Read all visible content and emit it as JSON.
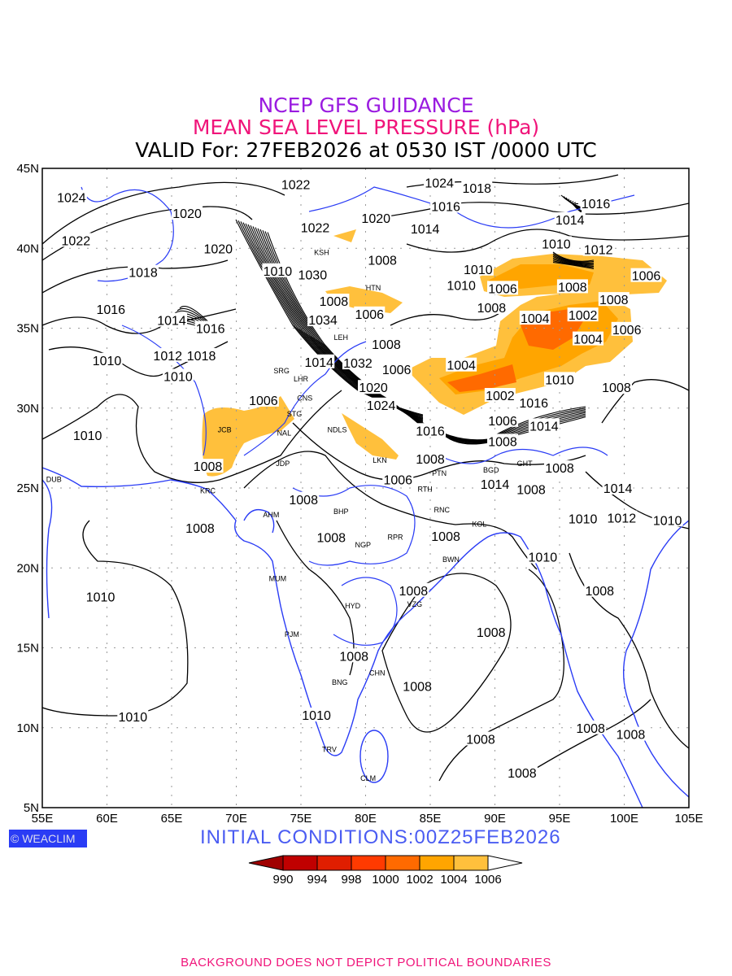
{
  "title": {
    "line1": "NCEP GFS GUIDANCE",
    "line2": "MEAN SEA LEVEL PRESSURE (hPa)",
    "line3": "VALID For: 27FEB2026 at 0530 IST /0000 UTC"
  },
  "initial_conditions": "INITIAL  CONDITIONS:00Z25FEB2026",
  "logo": "© WEACLIM",
  "footer": "BACKGROUND DOES NOT DEPICT POLITICAL BOUNDARIES",
  "axes": {
    "x_ticks": [
      "55E",
      "60E",
      "65E",
      "70E",
      "75E",
      "80E",
      "85E",
      "90E",
      "95E",
      "100E",
      "105E"
    ],
    "y_ticks": [
      "45N",
      "40N",
      "35N",
      "30N",
      "25N",
      "20N",
      "15N",
      "10N",
      "5N"
    ],
    "lon_range": [
      55,
      105
    ],
    "lat_range": [
      5,
      45
    ]
  },
  "colorbar": {
    "labels": [
      "990",
      "994",
      "998",
      "1000",
      "1002",
      "1004",
      "1006"
    ],
    "colors": [
      "#a00000",
      "#c00000",
      "#e01e00",
      "#ff3a00",
      "#ff6a00",
      "#ffa500",
      "#ffc03c",
      "#ffffff"
    ]
  },
  "colors": {
    "coast": "#2a3cf5",
    "contour": "#000000"
  },
  "cities": [
    {
      "name": "DUB",
      "lon": 55.9,
      "lat": 25.4
    },
    {
      "name": "JCB",
      "lon": 69.1,
      "lat": 28.5
    },
    {
      "name": "NAL",
      "lon": 73.7,
      "lat": 28.3
    },
    {
      "name": "SRG",
      "lon": 73.5,
      "lat": 32.2
    },
    {
      "name": "LHR",
      "lon": 75.0,
      "lat": 31.7
    },
    {
      "name": "CNS",
      "lon": 75.3,
      "lat": 30.5
    },
    {
      "name": "STG",
      "lon": 74.5,
      "lat": 29.5
    },
    {
      "name": "NDLS",
      "lon": 77.8,
      "lat": 28.5
    },
    {
      "name": "LKN",
      "lon": 81.1,
      "lat": 26.6
    },
    {
      "name": "JDP",
      "lon": 73.6,
      "lat": 26.4
    },
    {
      "name": "KRC",
      "lon": 67.8,
      "lat": 24.7
    },
    {
      "name": "AHM",
      "lon": 72.7,
      "lat": 23.2
    },
    {
      "name": "BHP",
      "lon": 78.1,
      "lat": 23.4
    },
    {
      "name": "PTN",
      "lon": 85.7,
      "lat": 25.8
    },
    {
      "name": "RTH",
      "lon": 84.6,
      "lat": 24.8
    },
    {
      "name": "RNC",
      "lon": 85.9,
      "lat": 23.5
    },
    {
      "name": "KOL",
      "lon": 88.8,
      "lat": 22.6
    },
    {
      "name": "NGP",
      "lon": 79.8,
      "lat": 21.3
    },
    {
      "name": "RPR",
      "lon": 82.3,
      "lat": 21.8
    },
    {
      "name": "BWN",
      "lon": 86.6,
      "lat": 20.4
    },
    {
      "name": "MUM",
      "lon": 73.2,
      "lat": 19.2
    },
    {
      "name": "HYD",
      "lon": 79.0,
      "lat": 17.5
    },
    {
      "name": "VZG",
      "lon": 83.8,
      "lat": 17.6
    },
    {
      "name": "PJM",
      "lon": 74.3,
      "lat": 15.7
    },
    {
      "name": "CHN",
      "lon": 80.9,
      "lat": 13.3
    },
    {
      "name": "BNG",
      "lon": 78.0,
      "lat": 12.7
    },
    {
      "name": "TRV",
      "lon": 77.2,
      "lat": 8.5
    },
    {
      "name": "CLM",
      "lon": 80.2,
      "lat": 6.7
    },
    {
      "name": "HTN",
      "lon": 80.6,
      "lat": 37.4
    },
    {
      "name": "KSH",
      "lon": 76.6,
      "lat": 39.6
    },
    {
      "name": "LEH",
      "lon": 78.1,
      "lat": 34.3
    },
    {
      "name": "GHT",
      "lon": 92.3,
      "lat": 26.4
    },
    {
      "name": "BGD",
      "lon": 89.7,
      "lat": 26.0
    }
  ],
  "isobar_labels": [
    {
      "v": "1024",
      "lon": 56.0,
      "lat": 43.2
    },
    {
      "v": "1022",
      "lon": 57.6,
      "lat": 40.5
    },
    {
      "v": "1020",
      "lon": 66.2,
      "lat": 42.2
    },
    {
      "v": "1022",
      "lon": 74.6,
      "lat": 44.0
    },
    {
      "v": "1024",
      "lon": 85.7,
      "lat": 44.1
    },
    {
      "v": "1016",
      "lon": 86.2,
      "lat": 43.6
    },
    {
      "v": "1018",
      "lon": 88.6,
      "lat": 42.8
    },
    {
      "v": "1016",
      "lon": 97.8,
      "lat": 42.8
    },
    {
      "v": "1014",
      "lon": 95.8,
      "lat": 41.8
    },
    {
      "v": "1012",
      "lon": 98.0,
      "lat": 40.9
    },
    {
      "v": "1010",
      "lon": 96.0,
      "lat": 40.3
    },
    {
      "v": "1020",
      "lon": 80.8,
      "lat": 41.9
    },
    {
      "v": "1014",
      "lon": 84.6,
      "lat": 42.2
    },
    {
      "v": "1022",
      "lon": 76.1,
      "lat": 41.3
    },
    {
      "v": "1020",
      "lon": 68.6,
      "lat": 40.0
    },
    {
      "v": "1018",
      "lon": 62.8,
      "lat": 38.5
    },
    {
      "v": "1016",
      "lon": 60.3,
      "lat": 36.2
    },
    {
      "v": "1014",
      "lon": 65.0,
      "lat": 35.5
    },
    {
      "v": "1016",
      "lon": 68.0,
      "lat": 35.0
    },
    {
      "v": "1018",
      "lon": 67.3,
      "lat": 33.3
    },
    {
      "v": "1012",
      "lon": 64.7,
      "lat": 33.3
    },
    {
      "v": "1010",
      "lon": 60.0,
      "lat": 33.0
    },
    {
      "v": "1010",
      "lon": 65.5,
      "lat": 32.0
    },
    {
      "v": "1010",
      "lon": 58.5,
      "lat": 28.3
    },
    {
      "v": "1008",
      "lon": 81.3,
      "lat": 38.3
    },
    {
      "v": "1010",
      "lon": 87.4,
      "lat": 37.7
    },
    {
      "v": "1010",
      "lon": 88.7,
      "lat": 38.7
    },
    {
      "v": "1006",
      "lon": 90.6,
      "lat": 37.5
    },
    {
      "v": "1006",
      "lon": 80.3,
      "lat": 35.9
    },
    {
      "v": "1008",
      "lon": 78.8,
      "lat": 36.7
    },
    {
      "v": "1008",
      "lon": 96.0,
      "lat": 37.6
    },
    {
      "v": "1006",
      "lon": 101.7,
      "lat": 38.3
    },
    {
      "v": "1004",
      "lon": 93.1,
      "lat": 36.6
    },
    {
      "v": "1008",
      "lon": 91.0,
      "lat": 36.3
    },
    {
      "v": "1002",
      "lon": 96.8,
      "lat": 36.8
    },
    {
      "v": "1008",
      "lon": 99.2,
      "lat": 36.8
    },
    {
      "v": "1006",
      "lon": 100.2,
      "lat": 35.9
    },
    {
      "v": "1004",
      "lon": 97.2,
      "lat": 35.3
    },
    {
      "v": "1008",
      "lon": 81.6,
      "lat": 34.0
    },
    {
      "v": "1006",
      "lon": 82.4,
      "lat": 33.4
    },
    {
      "v": "1004",
      "lon": 87.4,
      "lat": 32.7
    },
    {
      "v": "1010",
      "lon": 95.0,
      "lat": 31.8
    },
    {
      "v": "1016",
      "lon": 93.0,
      "lat": 31.3
    },
    {
      "v": "1002",
      "lon": 90.4,
      "lat": 30.8
    },
    {
      "v": "1006",
      "lon": 90.6,
      "lat": 30.2
    },
    {
      "v": "1008",
      "lon": 99.4,
      "lat": 31.3
    },
    {
      "v": "1008",
      "lon": 90.6,
      "lat": 28.9
    },
    {
      "v": "1014",
      "lon": 93.8,
      "lat": 28.9
    },
    {
      "v": "1006",
      "lon": 72.1,
      "lat": 30.5
    },
    {
      "v": "1020",
      "lon": 80.6,
      "lat": 31.3
    },
    {
      "v": "1024",
      "lon": 81.2,
      "lat": 30.2
    },
    {
      "v": "1016",
      "lon": 85.0,
      "lat": 28.6
    },
    {
      "v": "1008",
      "lon": 85.0,
      "lat": 27.8
    },
    {
      "v": "1006",
      "lon": 82.5,
      "lat": 26.5
    },
    {
      "v": "1014",
      "lon": 90.0,
      "lat": 27.2
    },
    {
      "v": "1008",
      "lon": 92.8,
      "lat": 25.9
    },
    {
      "v": "1008",
      "lon": 95.0,
      "lat": 25.3
    },
    {
      "v": "1014",
      "lon": 99.5,
      "lat": 25.0
    },
    {
      "v": "1012",
      "lon": 99.8,
      "lat": 24.1
    },
    {
      "v": "1010",
      "lon": 104.6,
      "lat": 23.0
    },
    {
      "v": "1010",
      "lon": 96.8,
      "lat": 23.1
    },
    {
      "v": "1008",
      "lon": 67.8,
      "lat": 25.4
    },
    {
      "v": "1008",
      "lon": 67.2,
      "lat": 22.5
    },
    {
      "v": "1008",
      "lon": 75.2,
      "lat": 24.3
    },
    {
      "v": "1008",
      "lon": 78.6,
      "lat": 22.9
    },
    {
      "v": "1008",
      "lon": 86.2,
      "lat": 22.0
    },
    {
      "v": "1010",
      "lon": 93.7,
      "lat": 20.7
    },
    {
      "v": "1010",
      "lon": 59.5,
      "lat": 18.2
    },
    {
      "v": "1008",
      "lon": 83.7,
      "lat": 18.6
    },
    {
      "v": "1008",
      "lon": 89.7,
      "lat": 16.0
    },
    {
      "v": "1008",
      "lon": 98.1,
      "lat": 18.6
    },
    {
      "v": "1008",
      "lon": 79.1,
      "lat": 14.5
    },
    {
      "v": "1008",
      "lon": 84.0,
      "lat": 12.6
    },
    {
      "v": "1010",
      "lon": 76.2,
      "lat": 10.8
    },
    {
      "v": "1010",
      "lon": 62.0,
      "lat": 10.7
    },
    {
      "v": "1008",
      "lon": 88.9,
      "lat": 9.3
    },
    {
      "v": "1008",
      "lon": 97.4,
      "lat": 10.0
    },
    {
      "v": "1008",
      "lon": 100.5,
      "lat": 9.6
    },
    {
      "v": "1008",
      "lon": 92.1,
      "lat": 7.2
    },
    {
      "v": "1010",
      "lon": 73.2,
      "lat": 38.6
    },
    {
      "v": "1030",
      "lon": 75.9,
      "lat": 37.4
    },
    {
      "v": "1034",
      "lon": 76.7,
      "lat": 36.5
    },
    {
      "v": "1032",
      "lon": 79.4,
      "lat": 33.8
    },
    {
      "v": "1014",
      "lon": 76.4,
      "lat": 32.9
    }
  ]
}
